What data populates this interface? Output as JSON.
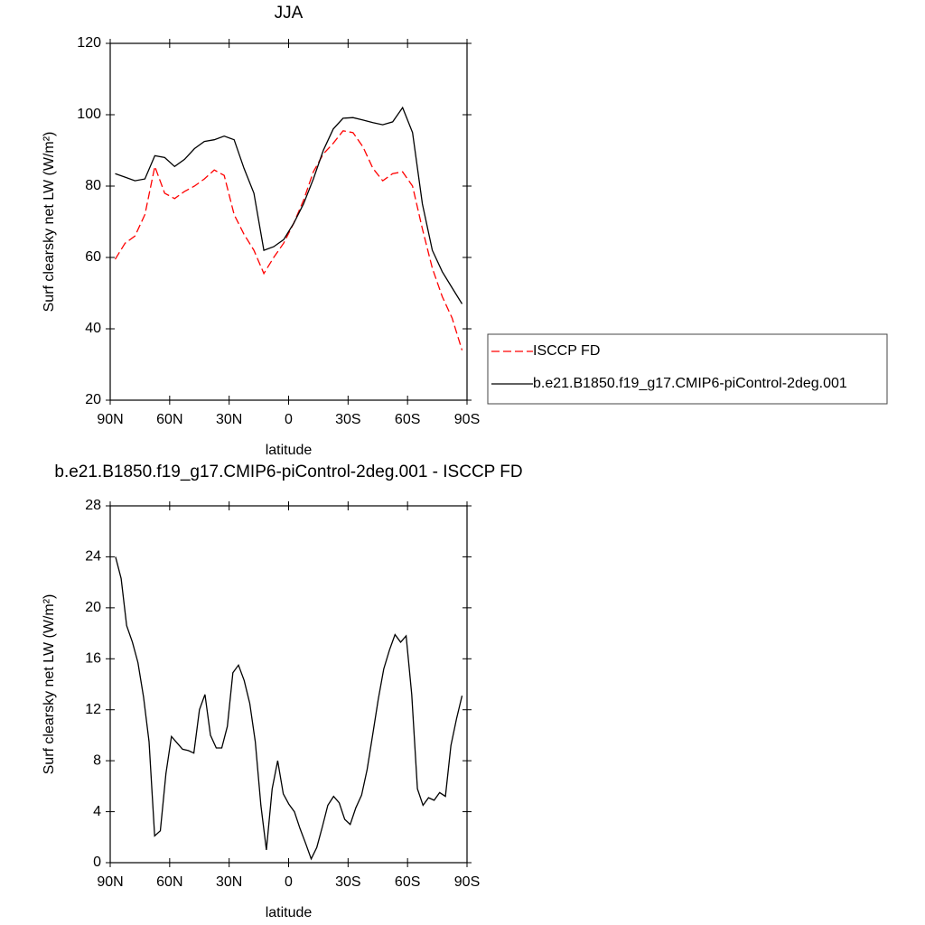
{
  "chart_data": [
    {
      "type": "line",
      "title": "JJA",
      "x_label": "latitude",
      "y_label": "Surf clearsky net LW (W/m²)",
      "x": [
        87.5,
        82.5,
        77.5,
        72.5,
        67.5,
        62.5,
        57.5,
        52.5,
        47.5,
        42.5,
        37.5,
        32.5,
        27.5,
        22.5,
        17.5,
        12.5,
        7.5,
        2.5,
        -2.5,
        -7.5,
        -12.5,
        -17.5,
        -22.5,
        -27.5,
        -32.5,
        -37.5,
        -42.5,
        -47.5,
        -52.5,
        -57.5,
        -62.5,
        -67.5,
        -72.5,
        -77.5,
        -82.5,
        -87.5
      ],
      "series": [
        {
          "name": "ISCCP FD",
          "color": "#ff0000",
          "line_style": "dashed",
          "values": [
            59.5,
            64,
            66,
            72,
            85.5,
            78,
            76.5,
            78.5,
            80,
            82,
            84.5,
            83,
            72,
            66.5,
            62,
            55.5,
            60,
            64,
            69.5,
            76,
            84,
            89,
            92,
            95.5,
            95,
            91,
            85,
            81.5,
            83.5,
            84,
            80,
            68,
            57,
            49,
            43,
            34
          ]
        },
        {
          "name": "b.e21.B1850.f19_g17.CMIP6-piControl-2deg.001",
          "color": "#000000",
          "line_style": "solid",
          "values": [
            83.5,
            82.5,
            81.5,
            82,
            88.5,
            88,
            85.5,
            87.5,
            90.5,
            92.5,
            93,
            94,
            93,
            85,
            78,
            62,
            63,
            65,
            69.5,
            75,
            82,
            90,
            96,
            99,
            99.2,
            98.5,
            97.8,
            97.2,
            98,
            102,
            95,
            75,
            62,
            56,
            51.5,
            47
          ]
        }
      ],
      "xlim": [
        90,
        -90
      ],
      "ylim": [
        20,
        120
      ],
      "xticks": [
        {
          "value": 90,
          "label": "90N"
        },
        {
          "value": 60,
          "label": "60N"
        },
        {
          "value": 30,
          "label": "30N"
        },
        0,
        {
          "value": -30,
          "label": "30S"
        },
        {
          "value": -60,
          "label": "60S"
        },
        {
          "value": -90,
          "label": "90S"
        }
      ],
      "yticks": [
        20,
        40,
        60,
        80,
        100,
        120
      ],
      "legend": "right"
    },
    {
      "type": "line",
      "title": "b.e21.B1850.f19_g17.CMIP6-piControl-2deg.001 - ISCCP FD",
      "x_label": "latitude",
      "y_label": "Surf clearsky net LW (W/m²)",
      "x": [
        87.3,
        84.5,
        81.7,
        78.8,
        76.0,
        73.2,
        70.4,
        67.6,
        64.7,
        61.9,
        59.1,
        56.3,
        53.5,
        50.6,
        47.8,
        45.0,
        42.2,
        39.4,
        36.5,
        33.7,
        30.9,
        28.1,
        25.3,
        22.4,
        19.6,
        16.8,
        14.0,
        11.2,
        8.3,
        5.5,
        2.7,
        -0.1,
        -2.9,
        -5.7,
        -8.6,
        -11.4,
        -14.2,
        -17.0,
        -19.8,
        -22.7,
        -25.5,
        -28.3,
        -31.1,
        -33.9,
        -36.8,
        -39.6,
        -42.4,
        -45.2,
        -48.0,
        -50.9,
        -53.7,
        -56.5,
        -59.3,
        -62.1,
        -65.0,
        -67.8,
        -70.6,
        -73.4,
        -76.2,
        -79.1,
        -81.9,
        -84.7,
        -87.5
      ],
      "series": [
        {
          "color": "#000000",
          "line_style": "solid",
          "values": [
            24,
            22.3,
            18.6,
            17.3,
            15.7,
            13,
            9.5,
            2.1,
            2.5,
            7,
            9.9,
            9.4,
            8.9,
            8.8,
            8.6,
            12,
            13.2,
            10,
            9,
            9,
            10.7,
            14.9,
            15.5,
            14.3,
            12.5,
            9.5,
            4.5,
            1,
            5.8,
            8,
            5.4,
            4.6,
            4,
            2.7,
            1.5,
            0.3,
            1.2,
            2.8,
            4.5,
            5.2,
            4.7,
            3.4,
            3,
            4.3,
            5.3,
            7.3,
            10,
            12.8,
            15.2,
            16.7,
            17.9,
            17.3,
            17.8,
            13.2,
            5.8,
            4.5,
            5.1,
            4.9,
            5.5,
            5.2,
            9.2,
            11.3,
            13.1
          ]
        }
      ],
      "xlim": [
        90,
        -90
      ],
      "ylim": [
        0,
        28
      ],
      "xticks": [
        {
          "value": 90,
          "label": "90N"
        },
        {
          "value": 60,
          "label": "60N"
        },
        {
          "value": 30,
          "label": "30N"
        },
        0,
        {
          "value": -30,
          "label": "30S"
        },
        {
          "value": -60,
          "label": "60S"
        },
        {
          "value": -90,
          "label": "90S"
        }
      ],
      "yticks": [
        0,
        4,
        8,
        12,
        16,
        20,
        24,
        28
      ]
    }
  ]
}
